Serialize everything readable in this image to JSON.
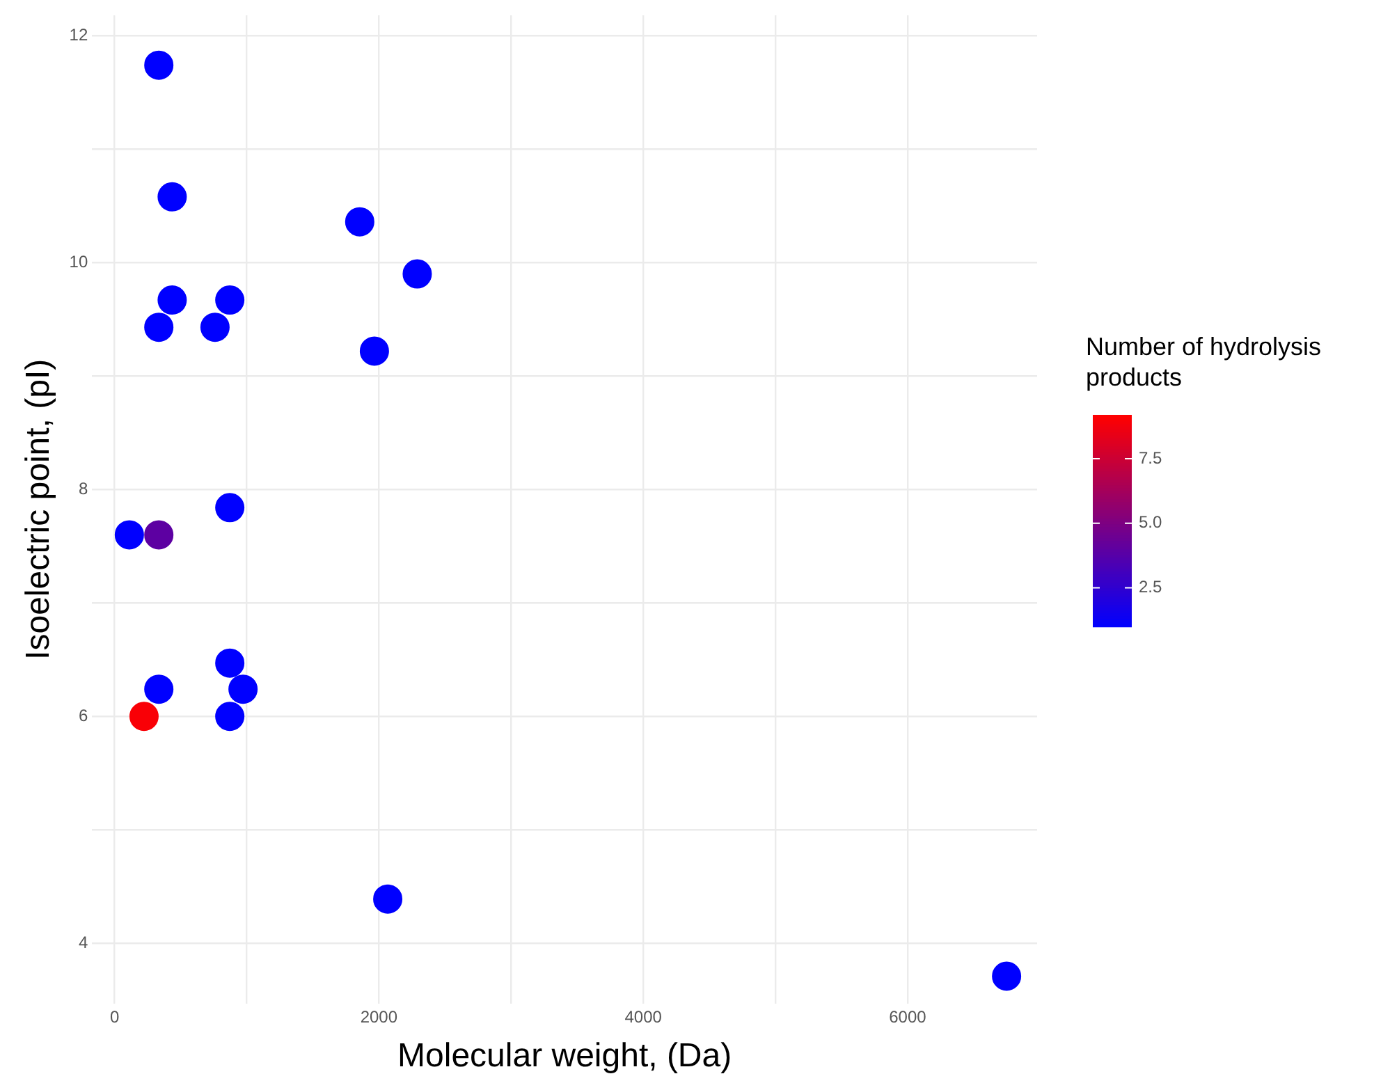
{
  "chart_data": {
    "type": "scatter",
    "xlabel": "Molecular weight, (Da)",
    "ylabel": "Isoelectric point, (pI)",
    "clabel": "Number of hydrolysis products",
    "x": [
      335,
      436,
      1855,
      2290,
      436,
      872,
      335,
      760,
      1966,
      872,
      112,
      335,
      872,
      335,
      972,
      223,
      872,
      2067,
      6749
    ],
    "values": [
      11.74,
      10.58,
      10.36,
      9.9,
      9.67,
      9.67,
      9.43,
      9.43,
      9.22,
      7.84,
      7.6,
      7.6,
      6.47,
      6.24,
      6.24,
      6.0,
      6.0,
      4.39,
      3.71
    ],
    "cvalues": [
      1,
      1,
      1,
      1,
      1,
      1,
      1,
      1,
      1,
      1,
      1,
      4,
      1,
      1,
      1,
      9,
      1,
      1,
      1
    ],
    "clim": [
      1,
      9.2
    ],
    "cticks": [
      2.5,
      {
        "value": 5,
        "label": "5.0"
      },
      7.5
    ],
    "xlim": [
      -170,
      6980
    ],
    "ylim": [
      3.47,
      12.18
    ],
    "xticks": [
      0,
      {
        "value": 1000,
        "label": null
      },
      2000,
      {
        "value": 3000,
        "label": null
      },
      4000,
      {
        "value": 5000,
        "label": null
      },
      6000
    ],
    "yticks": [
      4,
      {
        "value": 5,
        "label": null
      },
      6,
      {
        "value": 7,
        "label": null
      },
      8,
      {
        "value": 9,
        "label": null
      },
      10,
      {
        "value": 11,
        "label": null
      },
      12
    ],
    "grid": true,
    "legend": false,
    "marker": "circle"
  }
}
